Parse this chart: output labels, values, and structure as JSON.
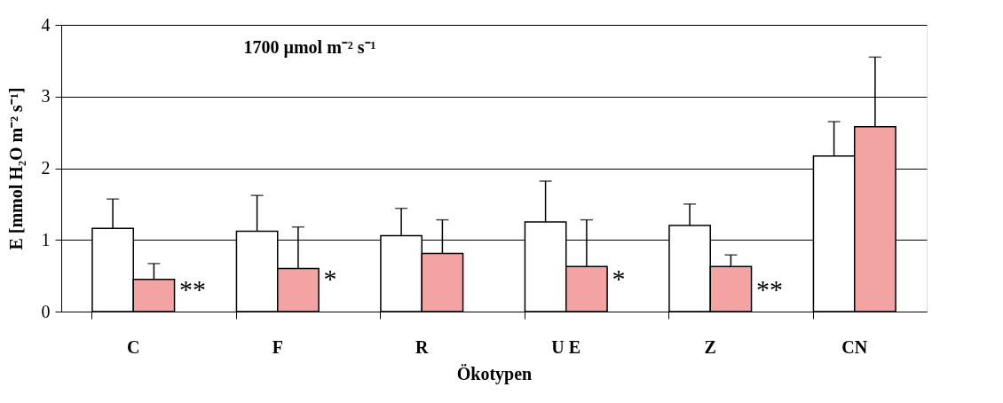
{
  "chart_data": {
    "type": "bar",
    "xlabel": "Ökotypen",
    "ylabel": "E [mmol H₂O m⁻² s⁻¹]",
    "categories": [
      "C",
      "F",
      "R",
      "U E",
      "Z",
      "CN"
    ],
    "series": [
      {
        "color": "#ffffff",
        "values": [
          1.16,
          1.12,
          1.06,
          1.25,
          1.2,
          2.17
        ],
        "errors": [
          0.41,
          0.5,
          0.38,
          0.57,
          0.3,
          0.48
        ]
      },
      {
        "color": "#f4a3a3",
        "values": [
          0.45,
          0.6,
          0.81,
          0.63,
          0.63,
          2.58
        ],
        "errors": [
          0.22,
          0.58,
          0.47,
          0.65,
          0.16,
          0.97
        ]
      }
    ],
    "ylim": [
      0,
      4
    ],
    "yticks": [
      0,
      1,
      2,
      3,
      4
    ],
    "grid": "y",
    "legend": false,
    "annotations": [
      "1700 µmol m⁻² s⁻¹",
      {
        "text": "**",
        "x": "C",
        "y": 0.3
      },
      {
        "text": "*",
        "x": "F",
        "y": 0.45
      },
      {
        "text": "*",
        "x": "U E",
        "y": 0.45
      },
      {
        "text": "**",
        "x": "Z",
        "y": 0.3
      }
    ]
  }
}
